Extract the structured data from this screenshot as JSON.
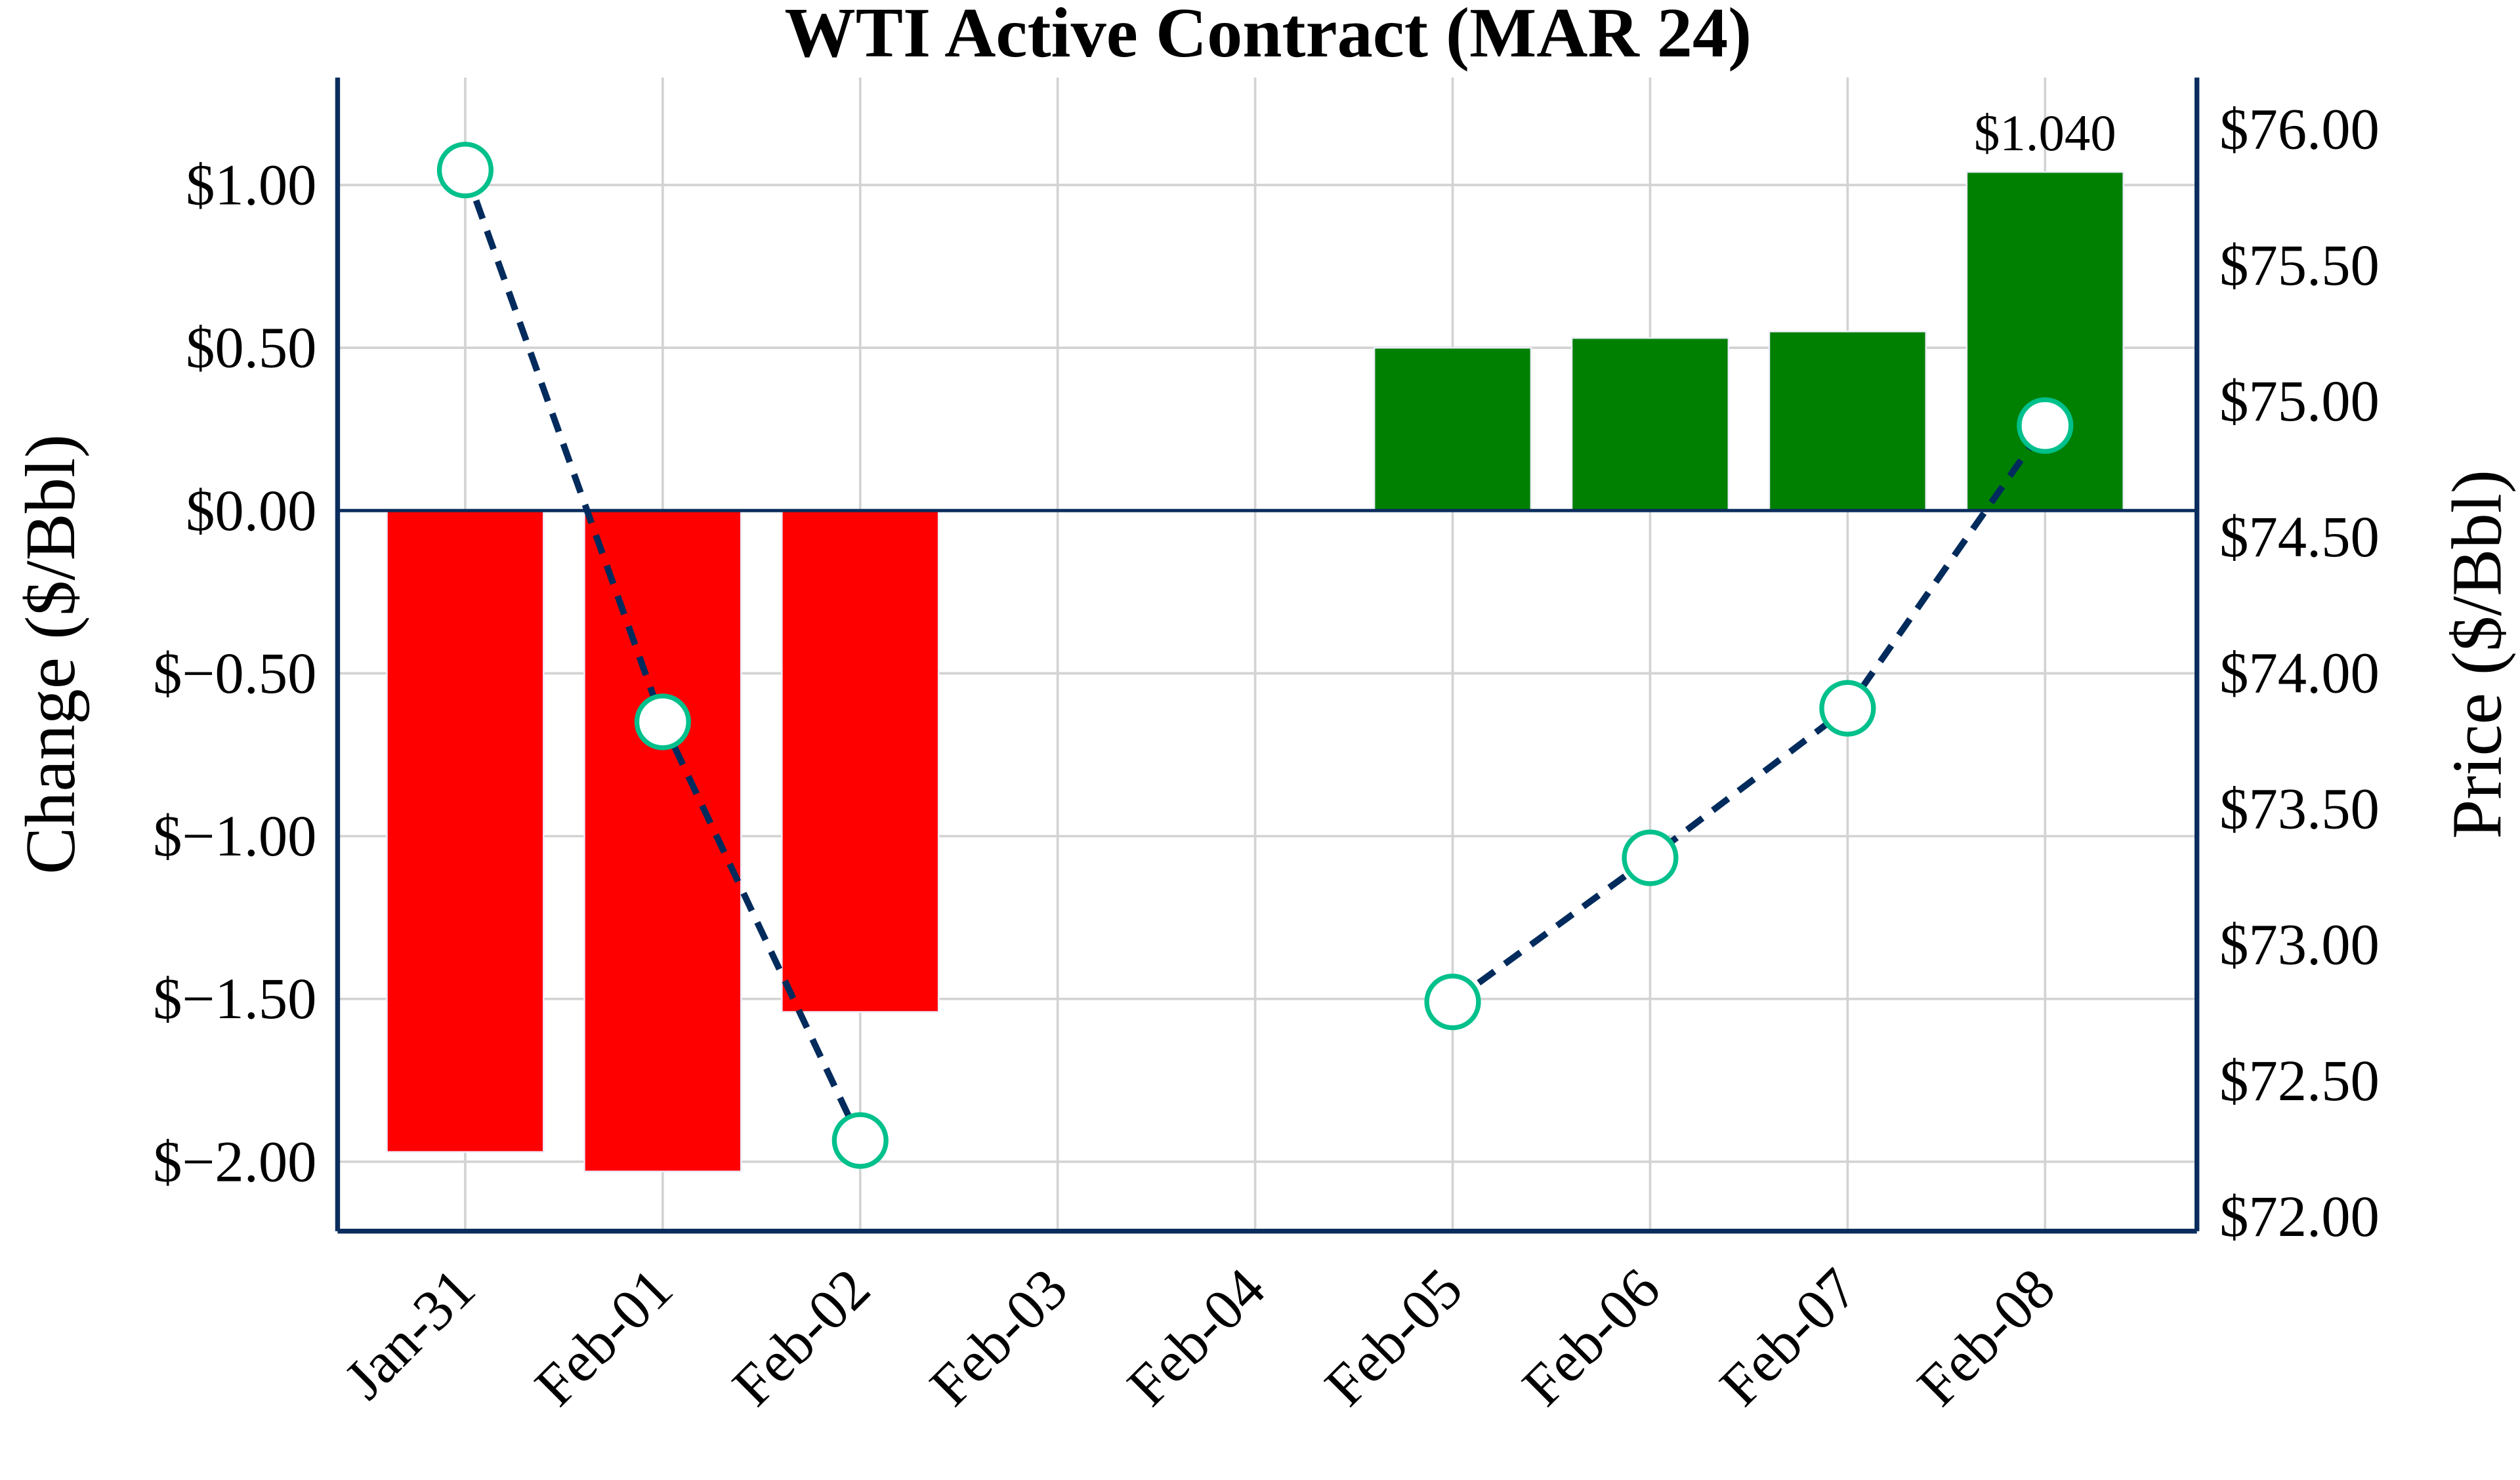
{
  "chart_data": {
    "type": "bar+line",
    "title": "WTI Active Contract (MAR 24)",
    "categories": [
      "Jan-31",
      "Feb-01",
      "Feb-02",
      "Feb-03",
      "Feb-04",
      "Feb-05",
      "Feb-06",
      "Feb-07",
      "Feb-08"
    ],
    "series": [
      {
        "axis": "left",
        "type": "bar",
        "values": [
          -1.97,
          -2.03,
          -1.54,
          null,
          null,
          0.5,
          0.53,
          0.55,
          1.04
        ]
      },
      {
        "axis": "right",
        "type": "line",
        "values": [
          75.85,
          73.82,
          72.28,
          null,
          null,
          72.79,
          73.32,
          73.87,
          74.91
        ]
      }
    ],
    "ylabel": "Change ($/Bbl)",
    "y2label": "Price ($/Bbl)",
    "ylim": [
      -2.22,
      1.32
    ],
    "y2lim": [
      71.95,
      76.19
    ],
    "yticks": [
      "$1.00",
      "$0.50",
      "$0.00",
      "$−0.50",
      "$−1.00",
      "$−1.50",
      "$−2.00"
    ],
    "ytick_values": [
      1,
      0.5,
      0,
      -0.5,
      -1,
      -1.5,
      -2
    ],
    "y2ticks": [
      "$76.00",
      "$75.50",
      "$75.00",
      "$74.50",
      "$74.00",
      "$73.50",
      "$73.00",
      "$72.50",
      "$72.00"
    ],
    "y2tick_values": [
      76,
      75.5,
      75,
      74.5,
      74,
      73.5,
      73,
      72.5,
      72
    ],
    "annotations": [
      {
        "category": "Feb-08",
        "text": "$1.040"
      }
    ],
    "grid": true,
    "colors": {
      "up": "#008000",
      "down": "#ff0000",
      "line": "#002b5c",
      "marker_edge": "#00c08b",
      "axis": "#0b2d5e",
      "grid": "#d3d3d3"
    }
  }
}
